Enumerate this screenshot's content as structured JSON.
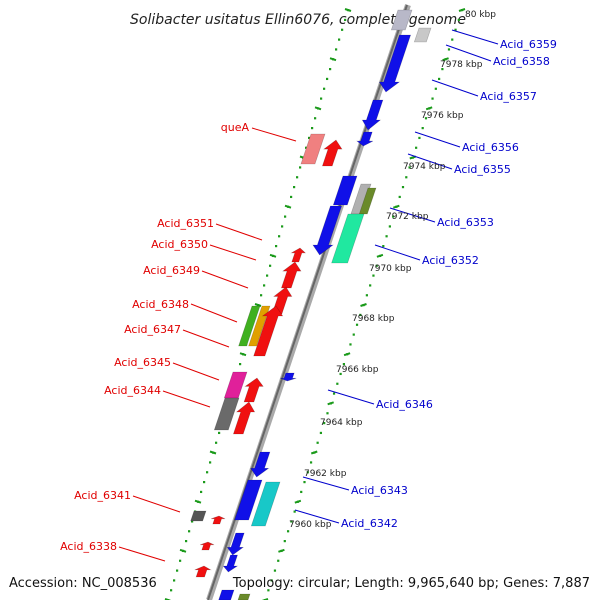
{
  "title": "Solibacter usitatus Ellin6076, complete genome",
  "footer": {
    "accession": "Accession: NC_008536",
    "topology": "Topology: circular; Length: 9,965,640 bp; Genes: 7,887"
  },
  "colors": {
    "forward_label": "#e00000",
    "reverse_label": "#0000cc",
    "backbone": "#8a8a8a",
    "tick": "#1a9a1a"
  },
  "kbp_ticks": [
    "80 kbp",
    "7978 kbp",
    "7976 kbp",
    "7974 kbp",
    "7972 kbp",
    "7970 kbp",
    "7968 kbp",
    "7966 kbp",
    "7964 kbp",
    "7962 kbp",
    "7960 kbp"
  ],
  "left_labels": [
    "queA",
    "Acid_6351",
    "Acid_6350",
    "Acid_6349",
    "Acid_6348",
    "Acid_6347",
    "Acid_6345",
    "Acid_6344",
    "Acid_6341",
    "Acid_6338"
  ],
  "right_labels": [
    "Acid_6359",
    "Acid_6358",
    "Acid_6357",
    "Acid_6356",
    "Acid_6355",
    "Acid_6353",
    "Acid_6352",
    "Acid_6346",
    "Acid_6343",
    "Acid_6342"
  ]
}
